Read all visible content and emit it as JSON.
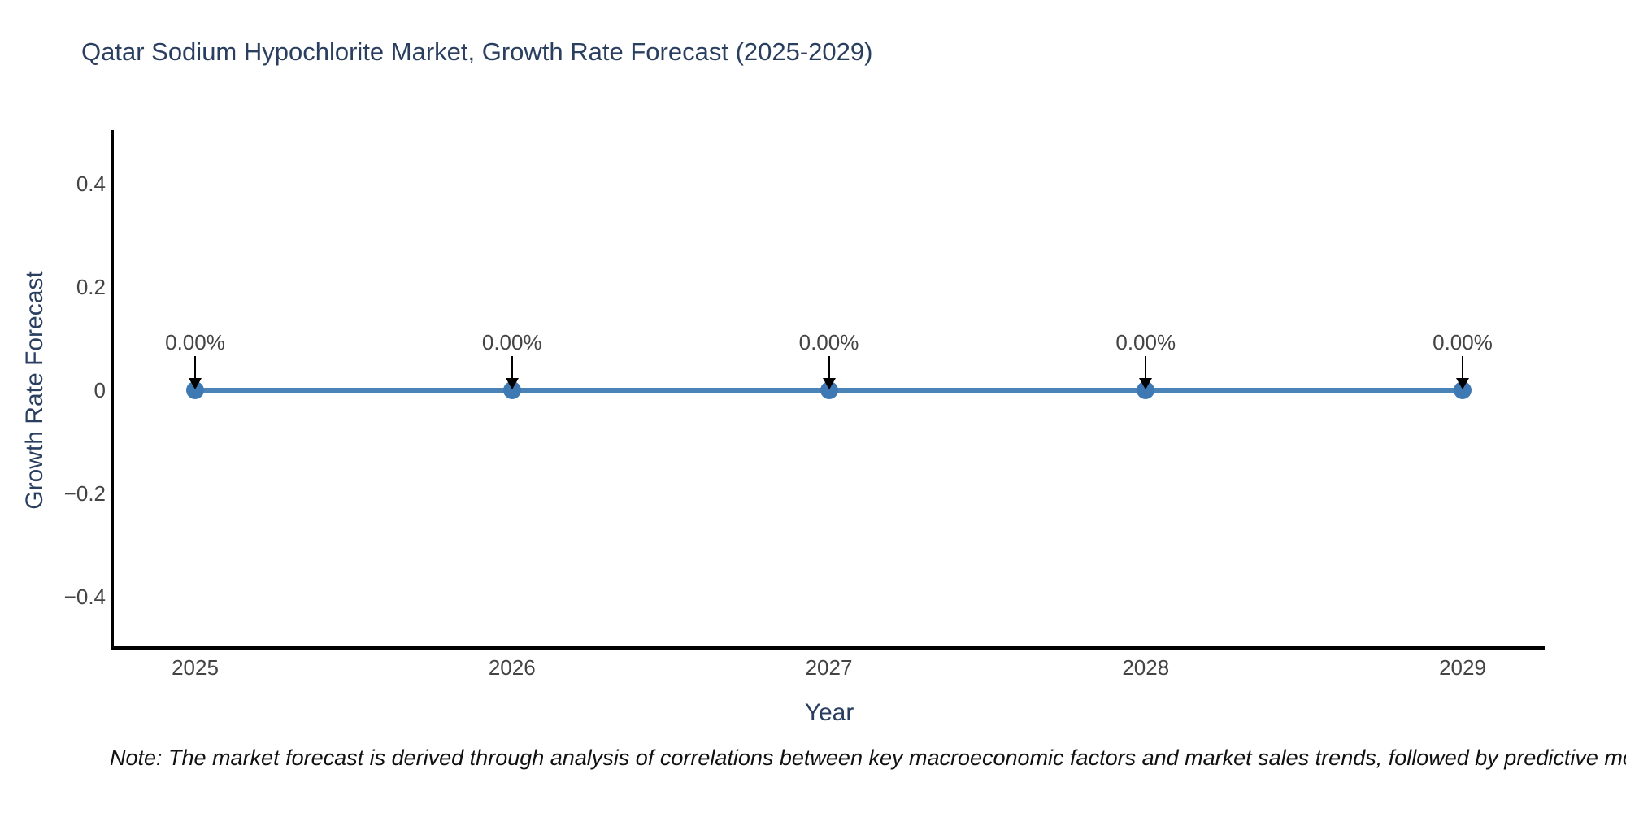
{
  "chart_data": {
    "type": "line",
    "title": "Qatar Sodium Hypochlorite Market, Growth Rate Forecast (2025-2029)",
    "xlabel": "Year",
    "ylabel": "Growth Rate Forecast",
    "x": [
      2025,
      2026,
      2027,
      2028,
      2029
    ],
    "x_tick_labels": [
      "2025",
      "2026",
      "2027",
      "2028",
      "2029"
    ],
    "series": [
      {
        "name": "Growth Rate Forecast",
        "values": [
          0,
          0,
          0,
          0,
          0
        ],
        "point_labels": [
          "0.00%",
          "0.00%",
          "0.00%",
          "0.00%",
          "0.00%"
        ]
      }
    ],
    "y_tick_labels": [
      "0.4",
      "0.2",
      "0",
      "−0.2",
      "−0.4"
    ],
    "y_tick_values": [
      0.4,
      0.2,
      0,
      -0.2,
      -0.4
    ],
    "ylim": [
      -0.5,
      0.5
    ],
    "grid": false,
    "legend": "none",
    "colors": {
      "line": "#4a83b8",
      "marker": "#3f79b4",
      "axis": "#000000",
      "title": "#2a3f5f",
      "tick": "#444444",
      "annotation": "#444444",
      "note": "#111111"
    }
  },
  "note": {
    "text": "Note: The market forecast is derived through analysis of correlations between key macroeconomic factors and market sales trends, followed by predictive modeling to project future sales"
  }
}
